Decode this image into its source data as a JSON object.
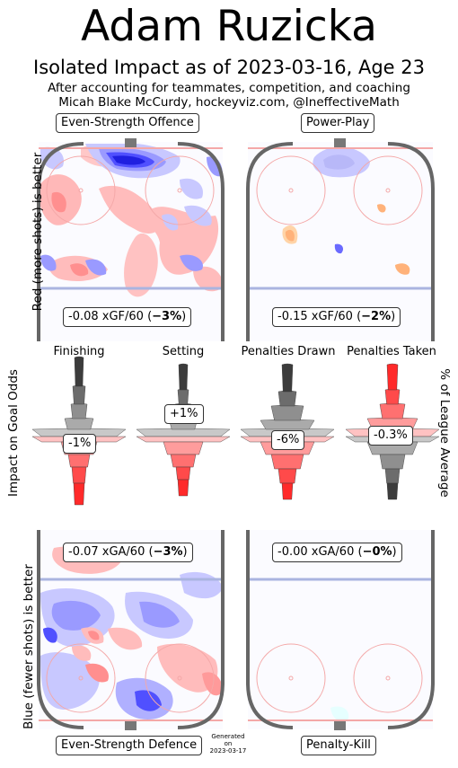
{
  "title": "Adam Ruzicka",
  "subtitle": "Isolated Impact as of 2023-03-16, Age 23",
  "subtitle2": "After accounting for teammates, competition, and coaching",
  "subtitle3": "Micah Blake McCurdy, hockeyviz.com, @IneffectiveMath",
  "left_axis_top": "Red (more shots) is better",
  "left_axis_mid": "Impact on Goal Odds",
  "left_axis_bottom": "Blue (fewer shots) is better",
  "right_axis_mid": "% of League Average",
  "generated": [
    "Generated",
    "on",
    "2023-03-17"
  ],
  "colors": {
    "red": "#ff3333",
    "blue": "#4444ff",
    "grey": "#888888",
    "rink": "#666666"
  },
  "chart_data": [
    {
      "type": "heatmap",
      "panel": "Even-Strength Offence",
      "title": "Even-Strength Offence",
      "stat_prefix": "-0.08 xGF/60 (",
      "stat_bold": "−3%",
      "stat_suffix": ")",
      "xgf60": -0.08,
      "pct": -3
    },
    {
      "type": "heatmap",
      "panel": "Power-Play",
      "title": "Power-Play",
      "stat_prefix": "-0.15 xGF/60 (",
      "stat_bold": "−2%",
      "stat_suffix": ")",
      "xgf60": -0.15,
      "pct": -2
    },
    {
      "type": "violin",
      "categories": [
        "Finishing",
        "Setting",
        "Penalties Drawn",
        "Penalties Taken"
      ],
      "values": [
        -1,
        1,
        -6,
        -0.3
      ],
      "labels": [
        "-1%",
        "+1%",
        "-6%",
        "-0.3%"
      ],
      "ylabel": "Impact on Goal Odds",
      "ylabel_right": "% of League Average"
    },
    {
      "type": "heatmap",
      "panel": "Even-Strength Defence",
      "title": "Even-Strength Defence",
      "stat_prefix": "-0.07 xGA/60 (",
      "stat_bold": "−3%",
      "stat_suffix": ")",
      "xga60": -0.07,
      "pct": -3
    },
    {
      "type": "heatmap",
      "panel": "Penalty-Kill",
      "title": "Penalty-Kill",
      "stat_prefix": "-0.00 xGA/60 (",
      "stat_bold": "−0%",
      "stat_suffix": ")",
      "xga60": -0.0,
      "pct": 0
    }
  ]
}
